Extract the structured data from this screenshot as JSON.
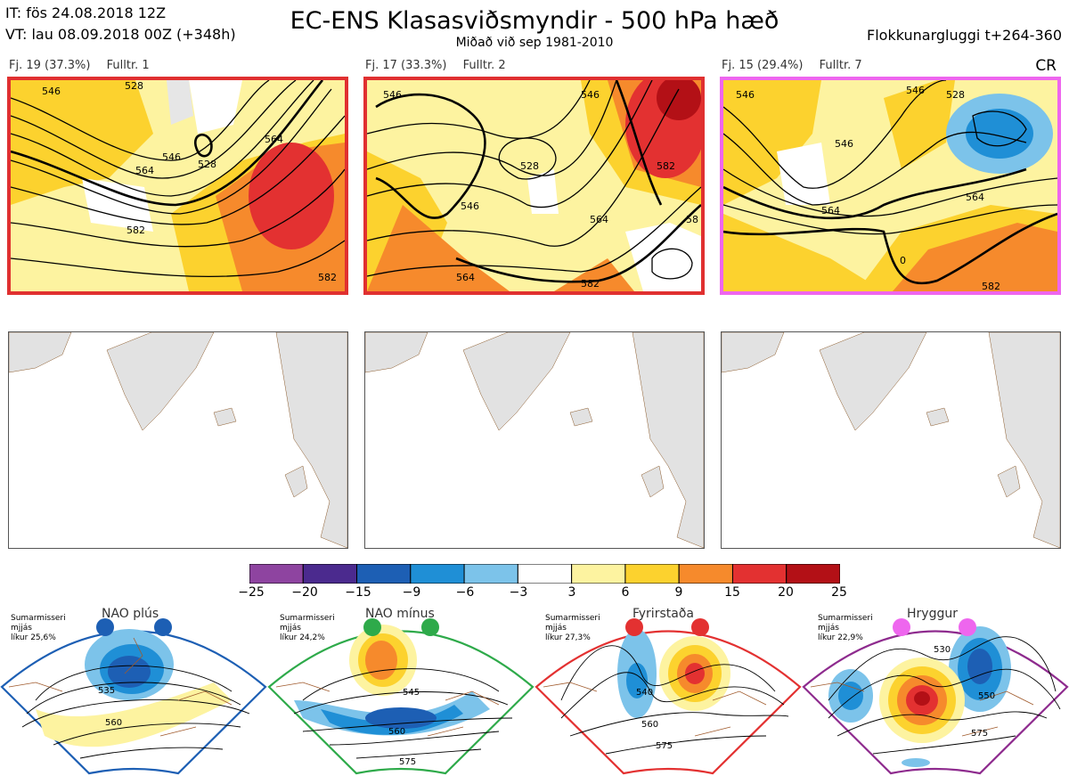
{
  "header": {
    "it_line": "IT: fös 24.08.2018 12Z",
    "vt_line": "VT: lau 08.09.2018 00Z  (+348h)",
    "title": "EC-ENS Klasasviðsmyndir - 500 hPa hæð",
    "subtitle": "Miðað við sep 1981-2010",
    "window": "Flokkunargluggi t+264-360"
  },
  "panels": [
    {
      "count": "Fj. 19 (37.3%)",
      "cluster": "Fulltr. 1",
      "border_color": "#e03030",
      "contour_labels": [
        "546",
        "528",
        "564",
        "546",
        "528",
        "564",
        "582",
        "582"
      ]
    },
    {
      "count": "Fj. 17 (33.3%)",
      "cluster": "Fulltr. 2",
      "border_color": "#e03030",
      "contour_labels": [
        "546",
        "528",
        "546",
        "564",
        "564",
        "546",
        "582",
        "58",
        "582"
      ]
    },
    {
      "count": "Fj. 15 (29.4%)",
      "cluster": "Fulltr. 7",
      "border_color": "#ee66ee",
      "contour_labels": [
        "546",
        "528",
        "546",
        "546",
        "564",
        "564",
        "582",
        "0"
      ]
    }
  ],
  "cr_label": "CR",
  "legend": {
    "ticks": [
      "−25",
      "−20",
      "−15",
      "−9",
      "−6",
      "−3",
      "3",
      "6",
      "9",
      "15",
      "20",
      "25"
    ],
    "colors": [
      "#8e44a0",
      "#4b2a8e",
      "#1d5fb4",
      "#1f8fd6",
      "#7cc3ea",
      "#ffffff",
      "#fdf3a0",
      "#fcd22e",
      "#f68a2c",
      "#e33131",
      "#b31016"
    ]
  },
  "regimes": [
    {
      "name": "NAO plús",
      "note_1": "Sumarmisseri",
      "note_2": "mjjás",
      "note_3": "líkur 25,6%",
      "dot_color": "#1d5fb4",
      "border_color": "#1d5fb4",
      "labels": [
        "535",
        "560"
      ]
    },
    {
      "name": "NAO mínus",
      "note_1": "Sumarmisseri",
      "note_2": "mjjás",
      "note_3": "líkur 24,2%",
      "dot_color": "#2eaa4a",
      "border_color": "#2eaa4a",
      "labels": [
        "545",
        "560",
        "575"
      ]
    },
    {
      "name": "Fyrirstaða",
      "note_1": "Sumarmisseri",
      "note_2": "mjjás",
      "note_3": "líkur 27,3%",
      "dot_color": "#e33131",
      "border_color": "#e33131",
      "labels": [
        "540",
        "560",
        "575"
      ]
    },
    {
      "name": "Hryggur",
      "note_1": "Sumarmisseri",
      "note_2": "mjjás",
      "note_3": "líkur 22,9%",
      "dot_color": "#ee66ee",
      "border_color": "#8e2b8e",
      "labels": [
        "530",
        "550",
        "575"
      ]
    }
  ]
}
